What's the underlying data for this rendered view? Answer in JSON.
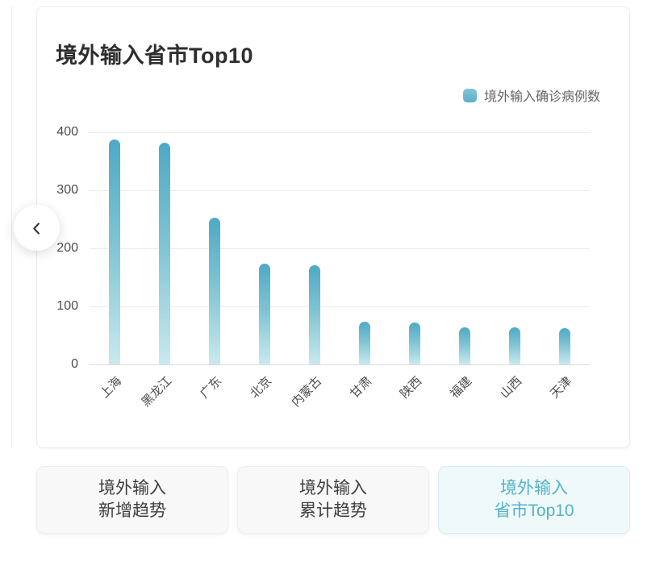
{
  "card": {
    "title": "境外输入省市Top10"
  },
  "legend": {
    "label": "境外输入确诊病例数"
  },
  "chart_data": {
    "type": "bar",
    "title": "境外输入省市Top10",
    "categories": [
      "上海",
      "黑龙江",
      "广东",
      "北京",
      "内蒙古",
      "甘肃",
      "陕西",
      "福建",
      "山西",
      "天津"
    ],
    "series": [
      {
        "name": "境外输入确诊病例数",
        "values": [
          387,
          382,
          253,
          173,
          171,
          73,
          72,
          64,
          64,
          63
        ]
      }
    ],
    "xlabel": "",
    "ylabel": "",
    "ylim": [
      0,
      400
    ],
    "yticks": [
      0,
      100,
      200,
      300,
      400
    ],
    "grid": true,
    "legend_position": "top-right",
    "x_label_rotation": -45
  },
  "carousel": {
    "back_icon": "chevron-left"
  },
  "tabs": {
    "items": [
      {
        "line1": "境外输入",
        "line2": "新增趋势",
        "active": false
      },
      {
        "line1": "境外输入",
        "line2": "累计趋势",
        "active": false
      },
      {
        "line1": "境外输入",
        "line2": "省市Top10",
        "active": true
      }
    ]
  },
  "colors": {
    "bar_top": "#4fa9c5",
    "bar_bottom": "#c9e9ee",
    "accent": "#53b3c6",
    "grid": "#ececec"
  }
}
